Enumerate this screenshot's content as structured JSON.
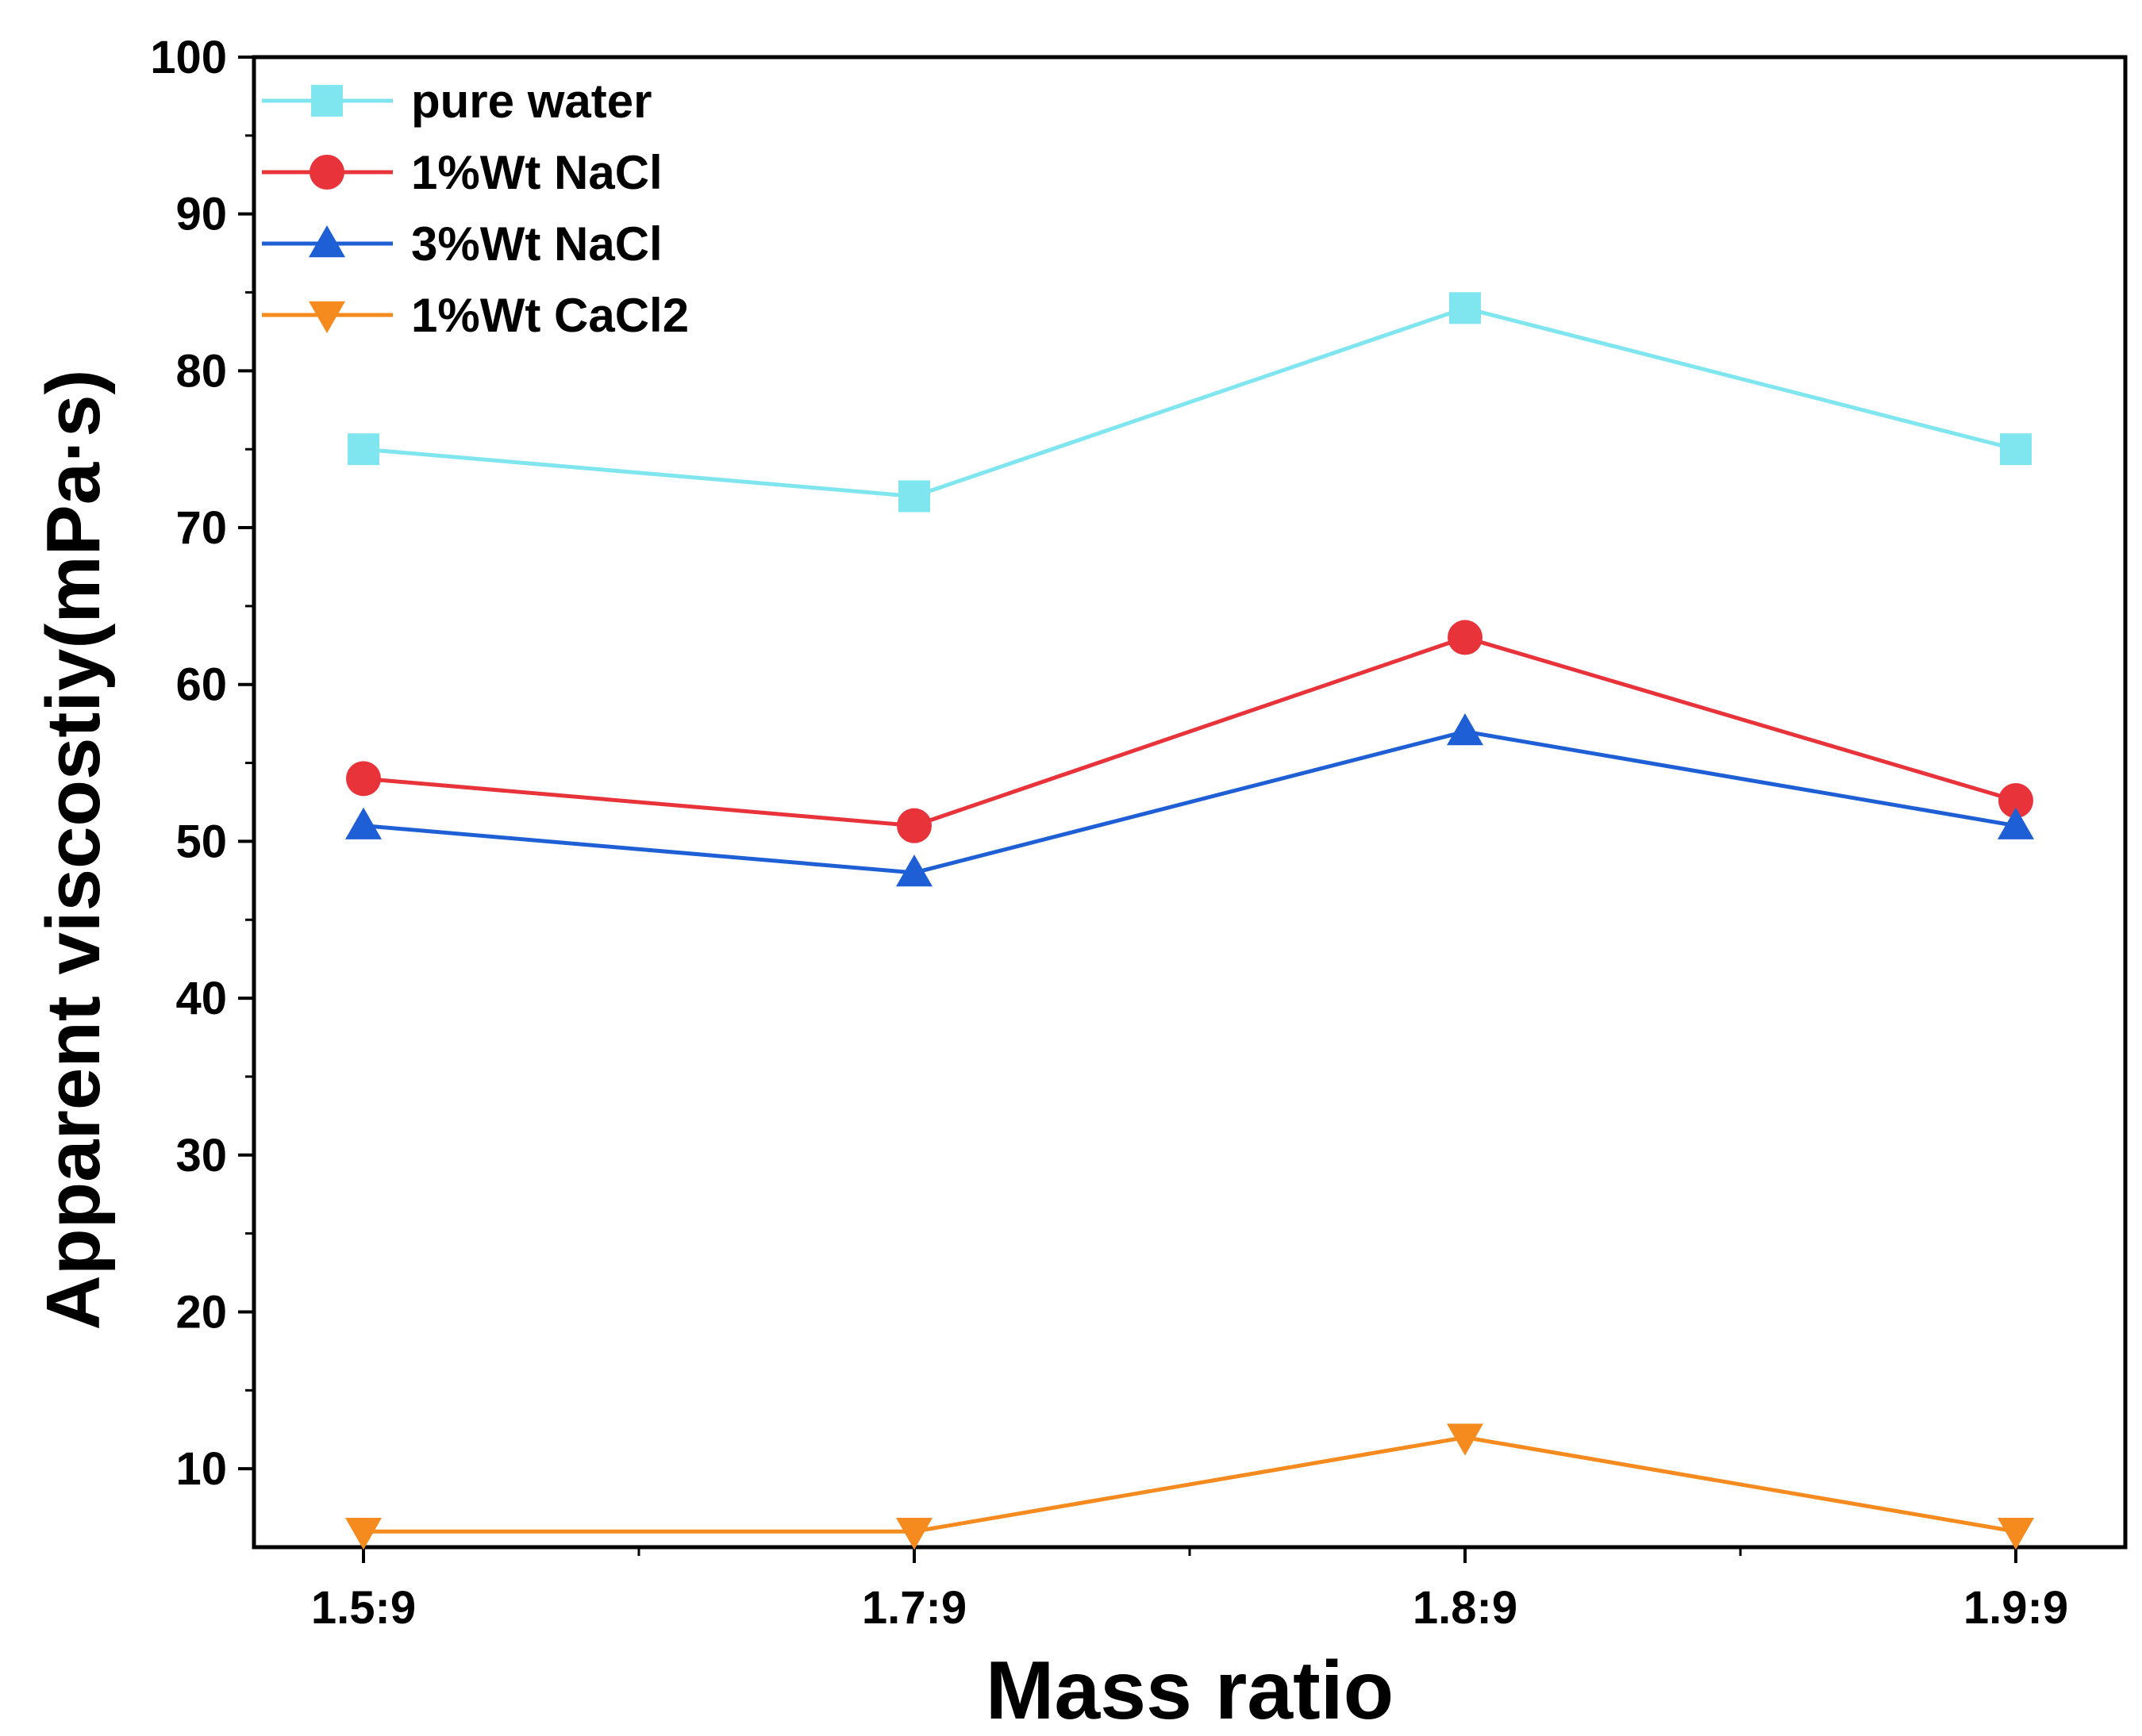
{
  "chart_data": {
    "type": "line",
    "title": "",
    "xlabel": "Mass ratio",
    "ylabel": "Apparent viscostiy(mPa·s)",
    "categories": [
      "1.5:9",
      "1.7:9",
      "1.8:9",
      "1.9:9"
    ],
    "ylim": [
      5,
      100
    ],
    "yticks": [
      10,
      20,
      30,
      40,
      50,
      60,
      70,
      80,
      90,
      100
    ],
    "grid": false,
    "legend_position": "top-left",
    "series": [
      {
        "name": "pure water",
        "marker": "square",
        "color": "#7fe5ef",
        "values": [
          75,
          72,
          84,
          75
        ]
      },
      {
        "name": "1%Wt NaCl",
        "marker": "circle",
        "color": "#e8333a",
        "values": [
          54,
          51,
          63,
          52.6
        ]
      },
      {
        "name": "3%Wt NaCl",
        "marker": "triangle-up",
        "color": "#1f5fd6",
        "values": [
          51,
          48,
          57,
          51
        ]
      },
      {
        "name": "1%Wt CaCl2",
        "marker": "triangle-down",
        "color": "#f58a1f",
        "values": [
          6,
          6,
          12,
          6
        ]
      }
    ]
  }
}
